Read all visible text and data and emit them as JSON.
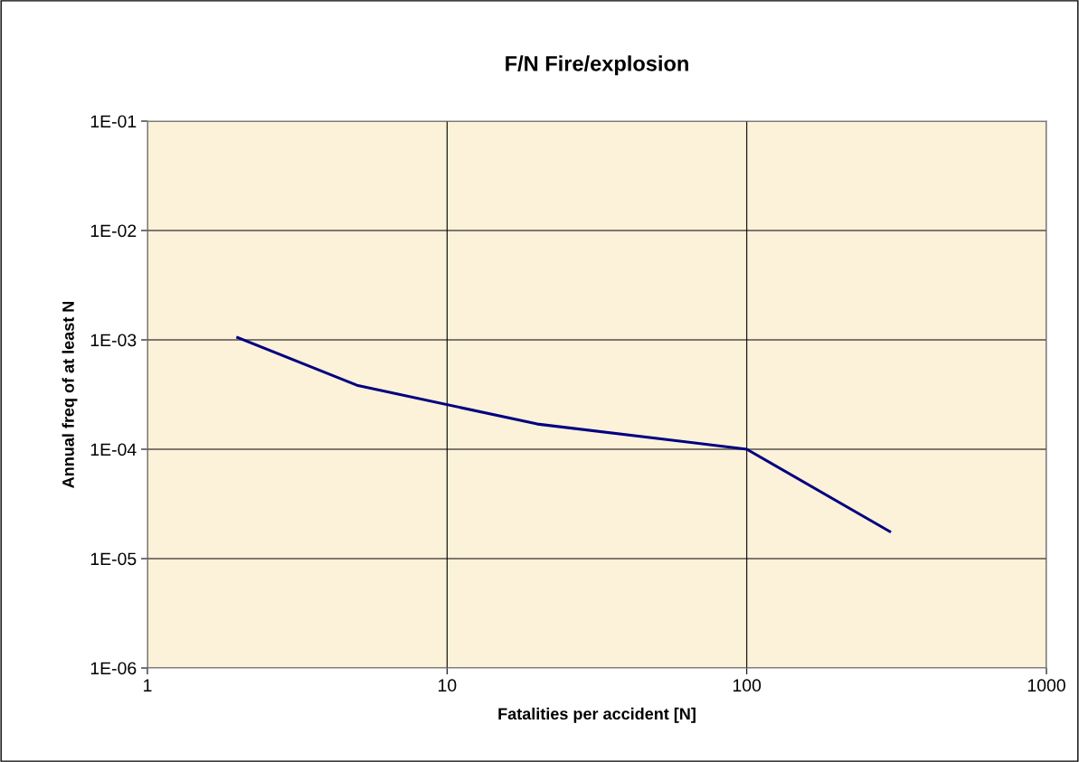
{
  "chart_data": {
    "type": "line",
    "title": "F/N Fire/explosion",
    "xlabel": "Fatalities per accident [N]",
    "ylabel": "Annual freq of at least N",
    "x": [
      2,
      5,
      20,
      100,
      300
    ],
    "series": [
      {
        "color": "#000080",
        "values": [
          0.00105,
          0.000385,
          0.00017,
          0.0001,
          1.77e-05
        ]
      }
    ],
    "log": "xy",
    "xlim": [
      1,
      1000
    ],
    "xticks": [
      1,
      10,
      100,
      1000
    ],
    "ylim": [
      1e-06,
      0.1
    ],
    "yticks": [
      {
        "value": 1e-06,
        "label": "1E-06"
      },
      {
        "value": 1e-05,
        "label": "1E-05"
      },
      {
        "value": 0.0001,
        "label": "1E-04"
      },
      {
        "value": 0.001,
        "label": "1E-03"
      },
      {
        "value": 0.01,
        "label": "1E-02"
      },
      {
        "value": 0.1,
        "label": "1E-01"
      }
    ],
    "grid": true,
    "marker": "none",
    "line_style": "solid"
  }
}
